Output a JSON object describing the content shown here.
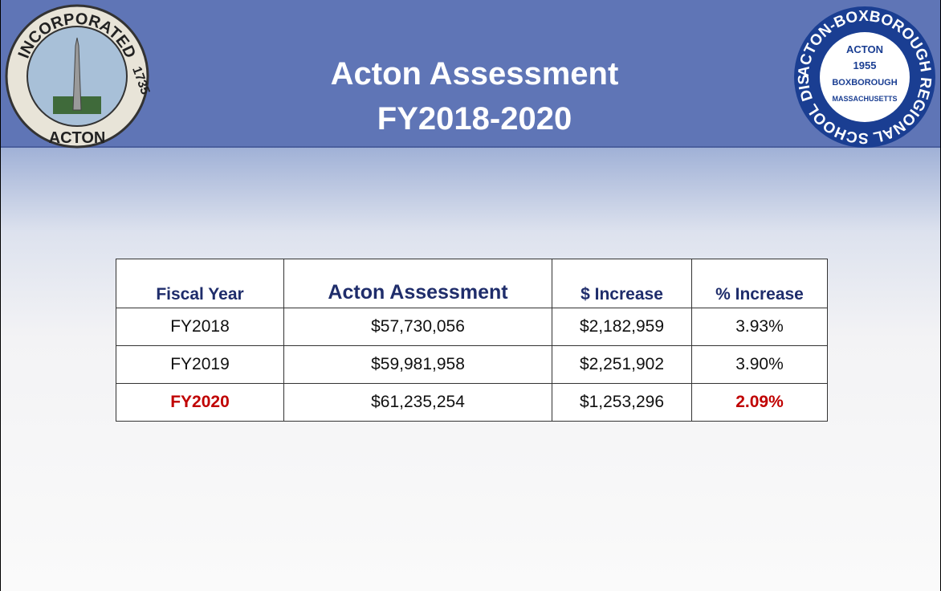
{
  "header": {
    "title": [
      "Acton Assessment",
      "FY2018-2020"
    ]
  },
  "left_logo": {
    "ring": "INCORPORATED",
    "year": "1735",
    "town": "ACTON"
  },
  "right_logo": {
    "ring": "ACTON-BOXBOROUGH REGIONAL SCHOOL DISTRICT",
    "center": [
      "ACTON",
      "1955",
      "BOXBOROUGH",
      "MASSACHUSETTS"
    ]
  },
  "table": {
    "columns": [
      "Fiscal Year",
      "Acton Assessment",
      "$ Increase",
      "% Increase"
    ],
    "rows": [
      [
        "FY2018",
        "$57,730,056",
        "$2,182,959",
        "3.93%"
      ],
      [
        "FY2019",
        "$59,981,958",
        "$2,251,902",
        "3.90%"
      ],
      [
        "FY2020",
        "$61,235,254",
        "$1,253,296",
        "2.09%"
      ]
    ],
    "highlight": {
      "row": 2,
      "columns": [
        0,
        3
      ],
      "color": "#c00000"
    }
  }
}
